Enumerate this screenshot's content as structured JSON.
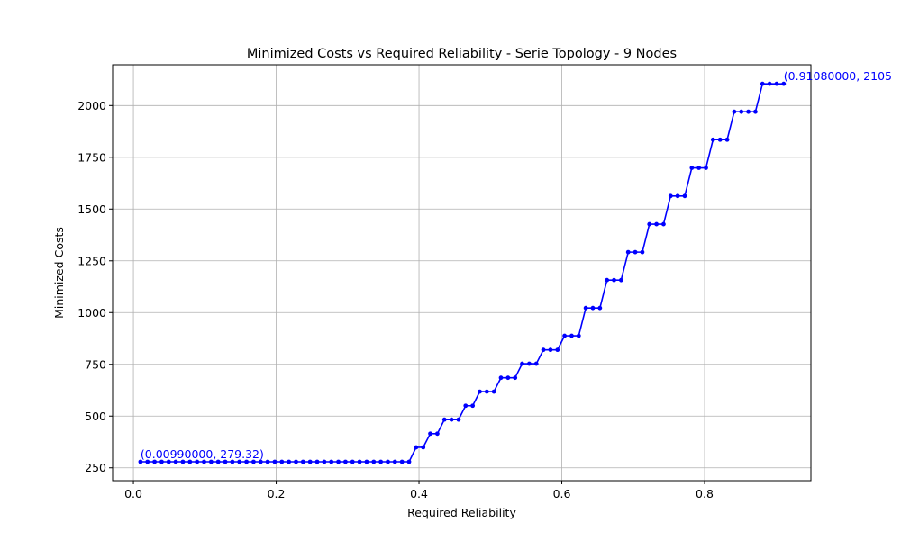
{
  "chart_data": {
    "type": "line",
    "title": "Minimized Costs vs Required Reliability - Serie Topology - 9 Nodes",
    "xlabel": "Required Reliability",
    "ylabel": "Minimized Costs",
    "xlim": [
      -0.0291,
      0.9489
    ],
    "ylim": [
      188,
      2197
    ],
    "xticks": [
      0.0,
      0.2,
      0.4,
      0.6,
      0.8
    ],
    "xtick_labels": [
      "0.0",
      "0.2",
      "0.4",
      "0.6",
      "0.8"
    ],
    "yticks": [
      250,
      500,
      750,
      1000,
      1250,
      1500,
      1750,
      2000
    ],
    "ytick_labels": [
      "250",
      "500",
      "750",
      "1000",
      "1250",
      "1500",
      "1750",
      "2000"
    ],
    "grid": true,
    "color": "#0000ff",
    "series": [
      {
        "x": [
          0.0099,
          0.0198,
          0.0297,
          0.0396,
          0.0495,
          0.0594,
          0.0693,
          0.0792,
          0.0891,
          0.099,
          0.1089,
          0.1188,
          0.1287,
          0.1386,
          0.1485,
          0.1584,
          0.1683,
          0.1782,
          0.1881,
          0.198,
          0.2079,
          0.2178,
          0.2277,
          0.2376,
          0.2475,
          0.2574,
          0.2673,
          0.2772,
          0.2871,
          0.297,
          0.3069,
          0.3168,
          0.3267,
          0.3366,
          0.3465,
          0.3564,
          0.3663,
          0.3762,
          0.3861,
          0.396,
          0.4059,
          0.4158,
          0.4257,
          0.4356,
          0.4455,
          0.4554,
          0.4653,
          0.4752,
          0.4851,
          0.495,
          0.5049,
          0.5148,
          0.5247,
          0.5346,
          0.5445,
          0.5544,
          0.5643,
          0.5742,
          0.5841,
          0.594,
          0.6039,
          0.6138,
          0.6237,
          0.6336,
          0.6435,
          0.6534,
          0.6633,
          0.6732,
          0.6831,
          0.693,
          0.7029,
          0.7128,
          0.7227,
          0.7326,
          0.7425,
          0.7524,
          0.7623,
          0.7722,
          0.7821,
          0.792,
          0.8019,
          0.8118,
          0.8217,
          0.8316,
          0.8415,
          0.8514,
          0.8613,
          0.8712,
          0.8811,
          0.891,
          0.9009,
          0.9108
        ],
        "y": [
          279.32,
          279.32,
          279.32,
          279.32,
          279.32,
          279.32,
          279.32,
          279.32,
          279.32,
          279.32,
          279.32,
          279.32,
          279.32,
          279.32,
          279.32,
          279.32,
          279.32,
          279.32,
          279.32,
          279.32,
          279.32,
          279.32,
          279.32,
          279.32,
          279.32,
          279.32,
          279.32,
          279.32,
          279.32,
          279.32,
          279.32,
          279.32,
          279.32,
          279.32,
          279.32,
          279.32,
          279.32,
          279.32,
          279.32,
          349,
          349,
          415,
          415,
          483,
          483,
          483,
          550,
          550,
          618,
          618,
          618,
          685,
          685,
          685,
          753,
          753,
          753,
          820,
          820,
          820,
          888,
          888,
          888,
          1022,
          1022,
          1022,
          1157,
          1157,
          1157,
          1292,
          1292,
          1292,
          1427,
          1427,
          1427,
          1563,
          1563,
          1563,
          1699,
          1699,
          1699,
          1835,
          1835,
          1835,
          1970,
          1970,
          1970,
          1970,
          2105,
          2105,
          2105,
          2105
        ]
      }
    ],
    "annotations": [
      {
        "x": 0.0099,
        "y": 279.32,
        "text": "(0.00990000, 279.32)"
      },
      {
        "x": 0.9108,
        "y": 2105,
        "text": "(0.91080000, 2105"
      }
    ]
  }
}
